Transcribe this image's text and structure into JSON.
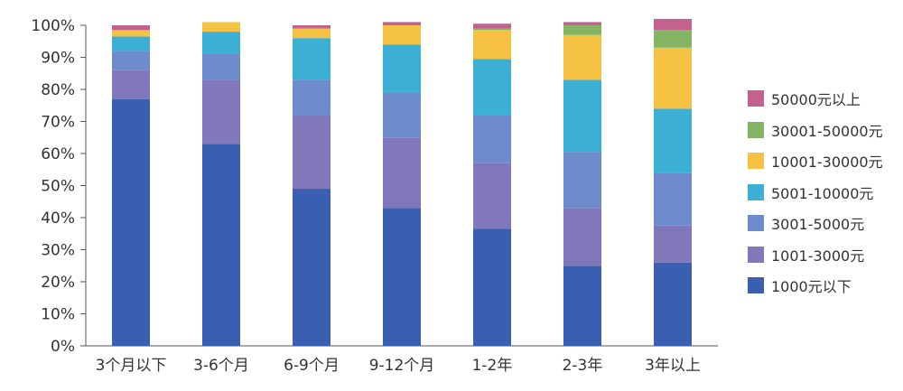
{
  "chart_data": {
    "type": "bar",
    "stacked": true,
    "categories": [
      "3个月以下",
      "3-6个月",
      "6-9个月",
      "9-12个月",
      "1-2年",
      "2-3年",
      "3年以上"
    ],
    "series": [
      {
        "name": "1000元以下",
        "color": "#3a5fb0",
        "values": [
          77,
          63,
          49,
          43,
          36.5,
          25,
          26
        ]
      },
      {
        "name": "1001-3000元",
        "color": "#8178bb",
        "values": [
          9,
          20,
          23,
          22,
          20.5,
          18,
          11.5
        ]
      },
      {
        "name": "3001-5000元",
        "color": "#6e8ccb",
        "values": [
          6,
          8,
          11,
          14,
          15,
          17.5,
          16.5
        ]
      },
      {
        "name": "5001-10000元",
        "color": "#3bafd4",
        "values": [
          4.5,
          7,
          13,
          15,
          17.5,
          22.5,
          20
        ]
      },
      {
        "name": "10001-30000元",
        "color": "#f6c244",
        "values": [
          2,
          3,
          3,
          6,
          9,
          14,
          19
        ]
      },
      {
        "name": "30001-50000元",
        "color": "#84b564",
        "values": [
          0,
          0,
          0,
          0,
          0.5,
          3,
          5.5
        ]
      },
      {
        "name": "50000元以上",
        "color": "#c4628f",
        "values": [
          1.5,
          0,
          1,
          1,
          1.5,
          1,
          3.5
        ]
      }
    ],
    "ylim": [
      0,
      100
    ],
    "yticks": [
      "0%",
      "10%",
      "20%",
      "30%",
      "40%",
      "50%",
      "60%",
      "70%",
      "80%",
      "90%",
      "100%"
    ],
    "grid": false,
    "legend_position": "right"
  }
}
